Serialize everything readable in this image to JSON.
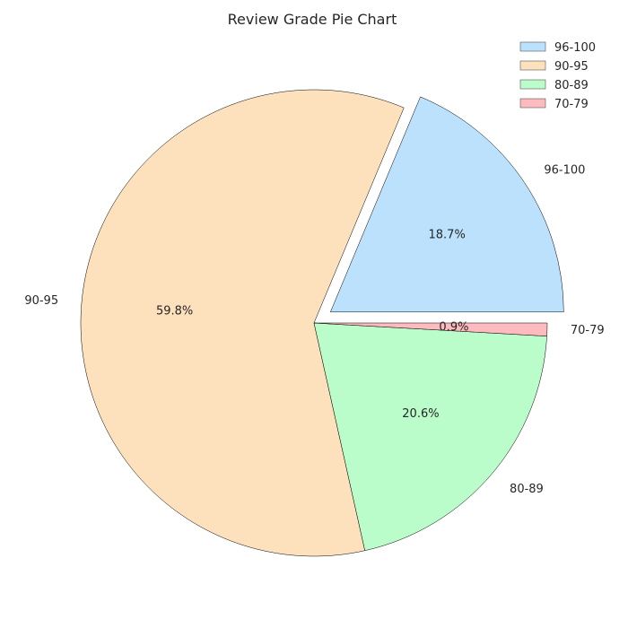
{
  "chart_data": {
    "type": "pie",
    "title": "Review Grade Pie Chart",
    "slices": [
      {
        "label": "96-100",
        "percent": 18.7,
        "percent_label": "18.7%",
        "color": "#bbe1fd",
        "exploded": true
      },
      {
        "label": "90-95",
        "percent": 59.8,
        "percent_label": "59.8%",
        "color": "#fde0bc",
        "exploded": false
      },
      {
        "label": "80-89",
        "percent": 20.6,
        "percent_label": "20.6%",
        "color": "#bbfdca",
        "exploded": false
      },
      {
        "label": "70-79",
        "percent": 0.9,
        "percent_label": "0.9%",
        "color": "#fdbbbf",
        "exploded": false
      }
    ],
    "legend": {
      "position": "top-right",
      "entries": [
        "96-100",
        "90-95",
        "80-89",
        "70-79"
      ]
    },
    "start_angle": 0,
    "direction": "counterclockwise"
  }
}
